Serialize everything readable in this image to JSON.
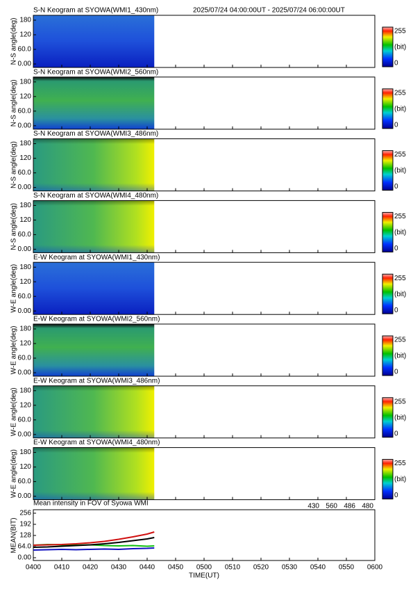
{
  "header": {
    "time_range": "2025/07/24 04:00:00UT - 2025/07/24 06:00:00UT"
  },
  "keograms": [
    {
      "title": "S-N Keogram at SYOWA(WMI1_430nm)",
      "ylabel": "N-S angle(deg)",
      "ylim": [
        0,
        180
      ],
      "yticks": [
        {
          "value": 0,
          "label": "0.00"
        },
        {
          "value": 60,
          "label": "60.0"
        },
        120,
        180
      ],
      "colorbar": {
        "max": 255,
        "unit": "(bit)",
        "min": 0
      }
    },
    {
      "title": "S-N Keogram at SYOWA(WMI2_560nm)",
      "ylabel": "N-S angle(deg)",
      "ylim": [
        0,
        180
      ],
      "yticks": [
        {
          "value": 0,
          "label": "0.00"
        },
        {
          "value": 60,
          "label": "60.0"
        },
        120,
        180
      ],
      "colorbar": {
        "max": 255,
        "unit": "(bit)",
        "min": 0
      }
    },
    {
      "title": "S-N Keogram at SYOWA(WMI3_486nm)",
      "ylabel": "N-S angle(deg)",
      "ylim": [
        0,
        180
      ],
      "yticks": [
        {
          "value": 0,
          "label": "0.00"
        },
        {
          "value": 60,
          "label": "60.0"
        },
        120,
        180
      ],
      "colorbar": {
        "max": 255,
        "unit": "(bit)",
        "min": 0
      }
    },
    {
      "title": "S-N Keogram at SYOWA(WMI4_480nm)",
      "ylabel": "N-S angle(deg)",
      "ylim": [
        0,
        180
      ],
      "yticks": [
        {
          "value": 0,
          "label": "0.00"
        },
        {
          "value": 60,
          "label": "60.0"
        },
        120,
        180
      ],
      "colorbar": {
        "max": 255,
        "unit": "(bit)",
        "min": 0
      }
    },
    {
      "title": "E-W Keogram at SYOWA(WMI1_430nm)",
      "ylabel": "W-E angle(deg)",
      "ylim": [
        0,
        180
      ],
      "yticks": [
        {
          "value": 0,
          "label": "0.00"
        },
        {
          "value": 60,
          "label": "60.0"
        },
        120,
        180
      ],
      "colorbar": {
        "max": 255,
        "unit": "(bit)",
        "min": 0
      }
    },
    {
      "title": "E-W Keogram at SYOWA(WMI2_560nm)",
      "ylabel": "W-E angle(deg)",
      "ylim": [
        0,
        180
      ],
      "yticks": [
        {
          "value": 0,
          "label": "0.00"
        },
        {
          "value": 60,
          "label": "60.0"
        },
        120,
        180
      ],
      "colorbar": {
        "max": 255,
        "unit": "(bit)",
        "min": 0
      }
    },
    {
      "title": "E-W Keogram at SYOWA(WMI3_486nm)",
      "ylabel": "W-E angle(deg)",
      "ylim": [
        0,
        180
      ],
      "yticks": [
        {
          "value": 0,
          "label": "0.00"
        },
        {
          "value": 60,
          "label": "60.0"
        },
        120,
        180
      ],
      "colorbar": {
        "max": 255,
        "unit": "(bit)",
        "min": 0
      }
    },
    {
      "title": "E-W Keogram at SYOWA(WMI4_480nm)",
      "ylabel": "W-E angle(deg)",
      "ylim": [
        0,
        180
      ],
      "yticks": [
        {
          "value": 0,
          "label": "0.00"
        },
        {
          "value": 60,
          "label": "60.0"
        },
        120,
        180
      ],
      "colorbar": {
        "max": 255,
        "unit": "(bit)",
        "min": 0
      }
    }
  ],
  "chart_data": {
    "type": "line",
    "title": "Mean intensity in FOV of Syowa WMI",
    "xlabel": "TIME(UT)",
    "ylabel": "MEAN(BIT)",
    "x": [
      240,
      245,
      250,
      255,
      260,
      265,
      270,
      275,
      280,
      282.5
    ],
    "xlim": [
      240,
      360
    ],
    "xticks": [
      {
        "value": 240,
        "label": "0400"
      },
      {
        "value": 250,
        "label": "0410"
      },
      {
        "value": 260,
        "label": "0420"
      },
      {
        "value": 270,
        "label": "0430"
      },
      {
        "value": 280,
        "label": "0440"
      },
      {
        "value": 290,
        "label": "0450"
      },
      {
        "value": 300,
        "label": "0500"
      },
      {
        "value": 310,
        "label": "0510"
      },
      {
        "value": 320,
        "label": "0520"
      },
      {
        "value": 330,
        "label": "0530"
      },
      {
        "value": 340,
        "label": "0540"
      },
      {
        "value": 350,
        "label": "0550"
      },
      {
        "value": 360,
        "label": "0600"
      }
    ],
    "ylim": [
      0,
      256
    ],
    "yticks": [
      {
        "value": 0,
        "label": "0.00"
      },
      {
        "value": 64,
        "label": "64.0"
      },
      128,
      192,
      256
    ],
    "series": [
      {
        "name": "430",
        "color": "#1010c0",
        "values": [
          44,
          46,
          48,
          46,
          48,
          50,
          48,
          52,
          54,
          56
        ]
      },
      {
        "name": "560",
        "color": "#10c010",
        "values": [
          72,
          76,
          74,
          72,
          74,
          70,
          68,
          70,
          66,
          68
        ]
      },
      {
        "name": "486",
        "color": "#d01010",
        "values": [
          72,
          74,
          76,
          80,
          86,
          94,
          106,
          120,
          136,
          148
        ]
      },
      {
        "name": "480",
        "color": "#000000",
        "values": [
          60,
          62,
          66,
          70,
          74,
          80,
          88,
          98,
          108,
          116
        ]
      }
    ]
  }
}
